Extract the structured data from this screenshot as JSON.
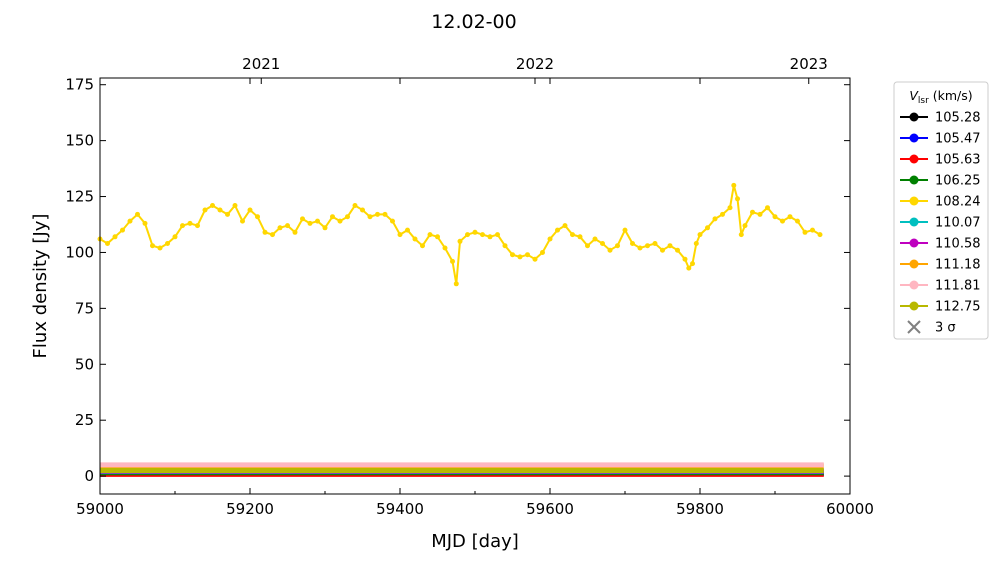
{
  "chart_data": {
    "type": "line",
    "title": "12.02-00",
    "xlabel": "MJD [day]",
    "ylabel": "Flux density [Jy]",
    "xlim": [
      59000,
      60000
    ],
    "ylim": [
      -8,
      178
    ],
    "xticks": [
      59000,
      59200,
      59400,
      59600,
      59800,
      60000
    ],
    "yticks": [
      0,
      25,
      50,
      75,
      100,
      125,
      150,
      175
    ],
    "top_axis": {
      "ticks": [
        {
          "label": "2021",
          "mjd": 59215
        },
        {
          "label": "2022",
          "mjd": 59580
        },
        {
          "label": "2023",
          "mjd": 59945
        }
      ]
    },
    "legend": {
      "title": "V_lsr (km/s)",
      "title_main": "V",
      "title_sub": "lsr",
      "title_rest": " (km/s)",
      "placement": "outside-right",
      "sigma_label": "3 σ",
      "sigma_color": "#808080"
    },
    "series": [
      {
        "name": "105.28",
        "color": "#000000",
        "level": 1.0
      },
      {
        "name": "105.47",
        "color": "#0000ff",
        "level": 1.2
      },
      {
        "name": "105.63",
        "color": "#ff0000",
        "level": 0.8
      },
      {
        "name": "106.25",
        "color": "#008000",
        "level": 1.5
      },
      {
        "name": "108.24",
        "color": "#ffd700",
        "x": [
          59000,
          59010,
          59020,
          59030,
          59040,
          59050,
          59060,
          59070,
          59080,
          59090,
          59100,
          59110,
          59120,
          59130,
          59140,
          59150,
          59160,
          59170,
          59180,
          59190,
          59200,
          59210,
          59220,
          59230,
          59240,
          59250,
          59260,
          59270,
          59280,
          59290,
          59300,
          59310,
          59320,
          59330,
          59340,
          59350,
          59360,
          59370,
          59380,
          59390,
          59400,
          59410,
          59420,
          59430,
          59440,
          59450,
          59460,
          59470,
          59475,
          59480,
          59490,
          59500,
          59510,
          59520,
          59530,
          59540,
          59550,
          59560,
          59570,
          59580,
          59590,
          59600,
          59610,
          59620,
          59630,
          59640,
          59650,
          59660,
          59670,
          59680,
          59690,
          59700,
          59710,
          59720,
          59730,
          59740,
          59750,
          59760,
          59770,
          59780,
          59785,
          59790,
          59795,
          59800,
          59810,
          59820,
          59830,
          59840,
          59845,
          59850,
          59855,
          59860,
          59870,
          59880,
          59890,
          59900,
          59910,
          59920,
          59930,
          59940,
          59950,
          59960
        ],
        "y": [
          106,
          104,
          107,
          110,
          114,
          117,
          113,
          103,
          102,
          104,
          107,
          112,
          113,
          112,
          119,
          121,
          119,
          117,
          121,
          114,
          119,
          116,
          109,
          108,
          111,
          112,
          109,
          115,
          113,
          114,
          111,
          116,
          114,
          116,
          121,
          119,
          116,
          117,
          117,
          114,
          108,
          110,
          106,
          103,
          108,
          107,
          102,
          96,
          86,
          105,
          108,
          109,
          108,
          107,
          108,
          103,
          99,
          98,
          99,
          97,
          100,
          106,
          110,
          112,
          108,
          107,
          103,
          106,
          104,
          101,
          103,
          110,
          104,
          102,
          103,
          104,
          101,
          103,
          101,
          97,
          93,
          95,
          104,
          108,
          111,
          115,
          117,
          120,
          130,
          124,
          108,
          112,
          118,
          117,
          120,
          116,
          114,
          116,
          114,
          109,
          110,
          108
        ]
      },
      {
        "name": "110.07",
        "color": "#00bfbf",
        "level": 2.0
      },
      {
        "name": "110.58",
        "color": "#bf00bf",
        "level": 2.2
      },
      {
        "name": "111.18",
        "color": "#ffa500",
        "level": 4.5
      },
      {
        "name": "111.81",
        "color": "#ffb6c1",
        "level": 5.0
      },
      {
        "name": "112.75",
        "color": "#b8b800",
        "level": 2.5
      }
    ]
  }
}
